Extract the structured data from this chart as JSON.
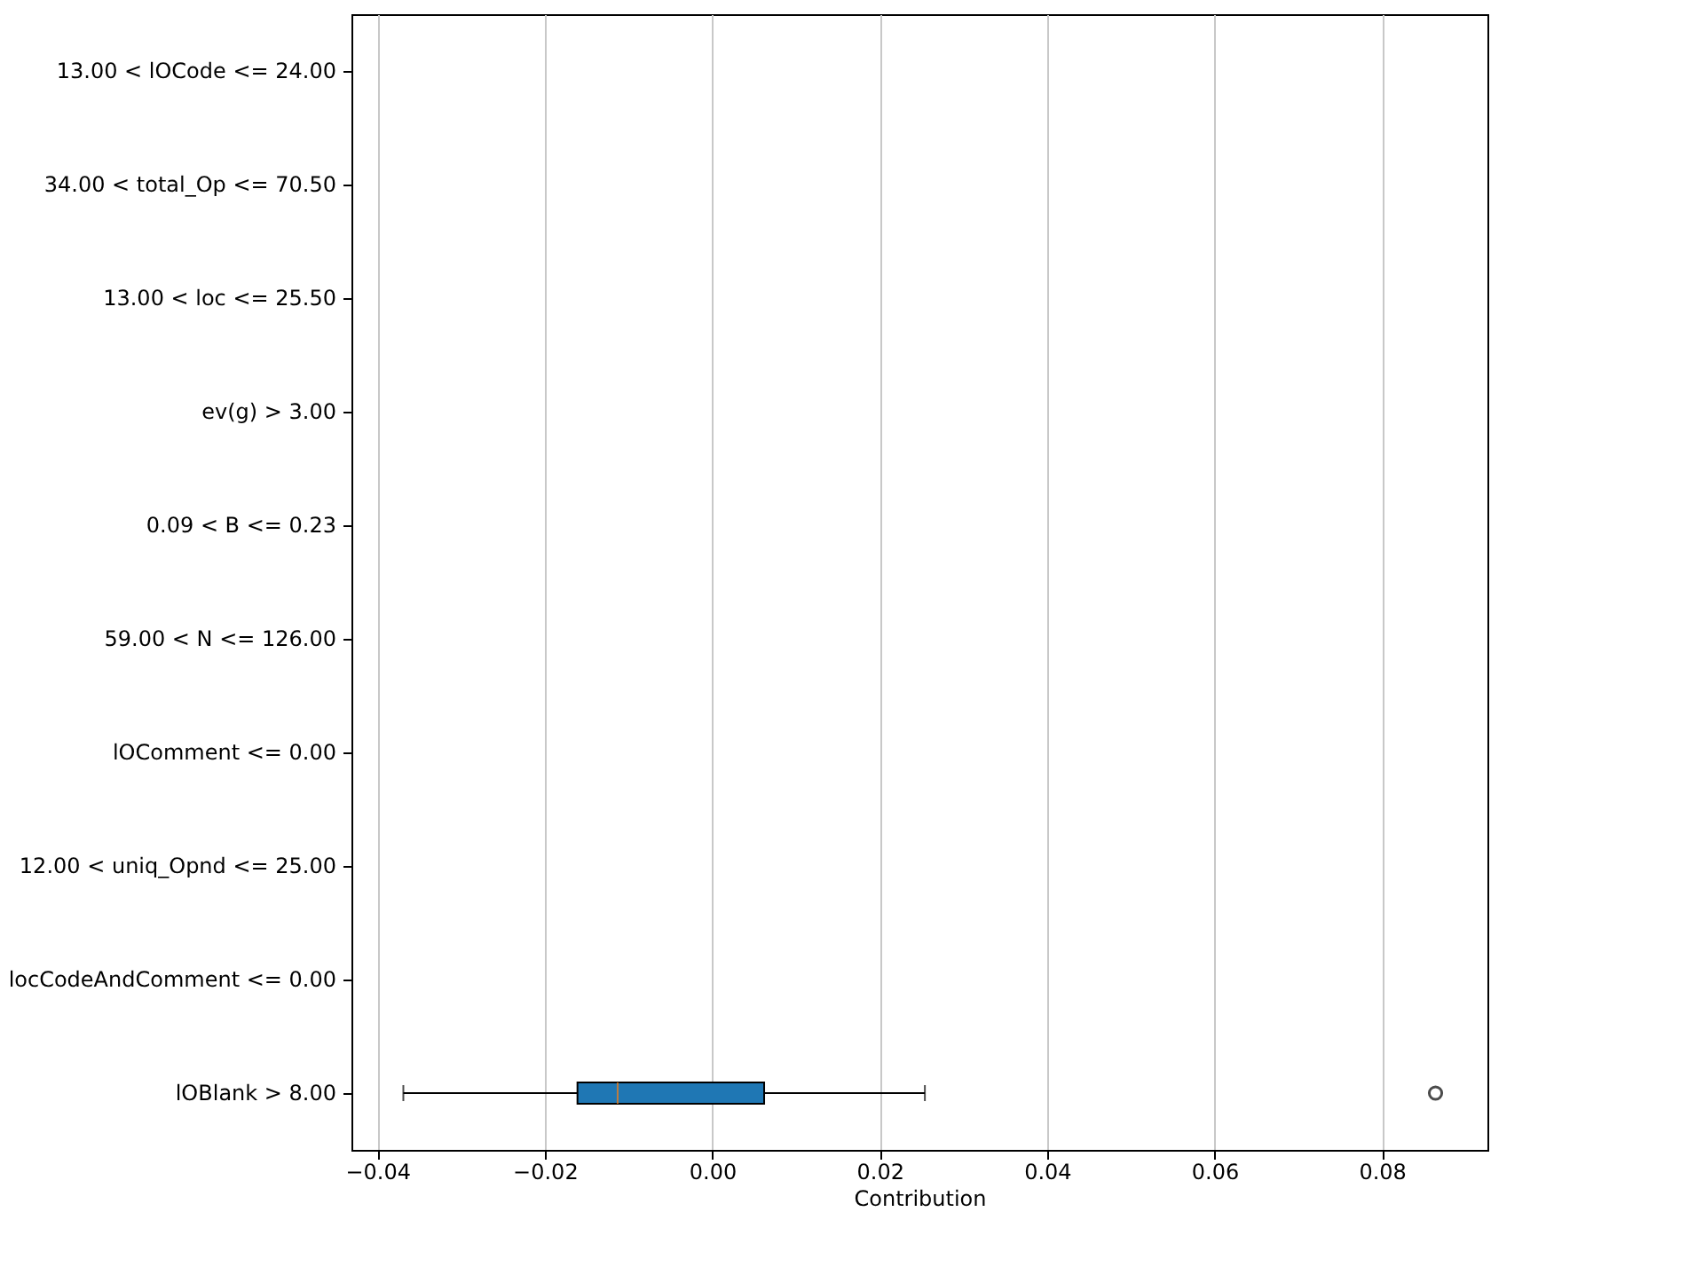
{
  "chart_data": {
    "type": "box",
    "orientation": "horizontal",
    "xlabel": "Contribution",
    "color": "#1f77b4",
    "categories": [
      "13.00 < lOCode <= 24.00",
      "34.00 < total_Op <= 70.50",
      "13.00 < loc <= 25.50",
      "ev(g) > 3.00",
      "0.09 < B <= 0.23",
      "59.00 < N <= 126.00",
      "lOComment <= 0.00",
      "12.00 < uniq_Opnd <= 25.00",
      "locCodeAndComment <= 0.00",
      "lOBlank > 8.00"
    ],
    "boxes": [
      null,
      null,
      null,
      null,
      null,
      null,
      null,
      null,
      null,
      {
        "low": -0.0369,
        "q1": -0.0161,
        "median": -0.0113,
        "q3": 0.0062,
        "high": 0.0254,
        "outliers": [
          0.0864
        ]
      }
    ],
    "xlim": [
      -0.0431,
      0.0926
    ],
    "xticks": [
      {
        "value": -0.04,
        "label": "−0.04"
      },
      {
        "value": -0.02,
        "label": "−0.02"
      },
      {
        "value": 0,
        "label": "0.00"
      },
      {
        "value": 0.02,
        "label": "0.02"
      },
      {
        "value": 0.04,
        "label": "0.04"
      },
      {
        "value": 0.06,
        "label": "0.06"
      },
      {
        "value": 0.08,
        "label": "0.08"
      }
    ],
    "grid": "x"
  }
}
